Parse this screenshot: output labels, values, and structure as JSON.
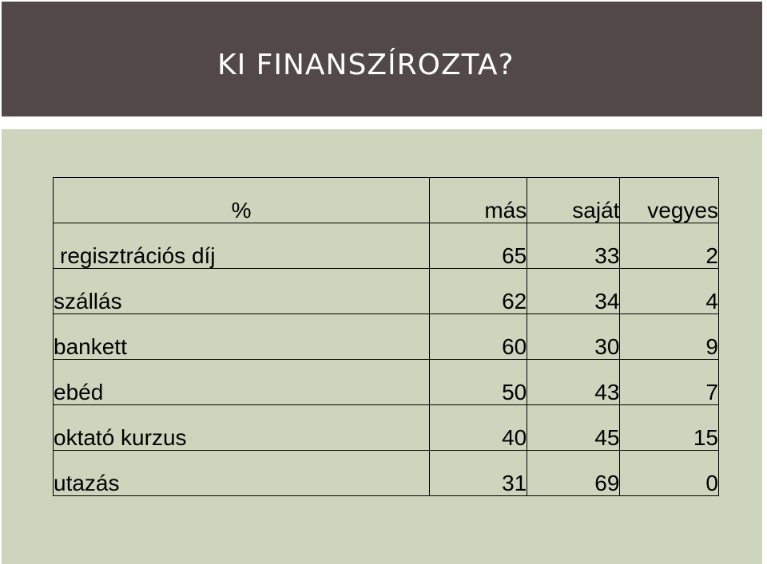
{
  "title": "KI FINANSZÍROZTA?",
  "colors": {
    "title_bar": "#524848",
    "content_panel": "#cdd5bd",
    "title_text": "#ffffff"
  },
  "chart_data": {
    "type": "table",
    "columns": [
      "%",
      "más",
      "saját",
      "vegyes"
    ],
    "rows": [
      {
        "label": "regisztrációs díj",
        "values": [
          "65",
          "33",
          "2"
        ]
      },
      {
        "label": "szállás",
        "values": [
          "62",
          "34",
          "4"
        ]
      },
      {
        "label": "bankett",
        "values": [
          "60",
          "30",
          "9"
        ]
      },
      {
        "label": "ebéd",
        "values": [
          "50",
          "43",
          "7"
        ]
      },
      {
        "label": "oktató kurzus",
        "values": [
          "40",
          "45",
          "15"
        ]
      },
      {
        "label": "utazás",
        "values": [
          "31",
          "69",
          "0"
        ]
      }
    ]
  }
}
